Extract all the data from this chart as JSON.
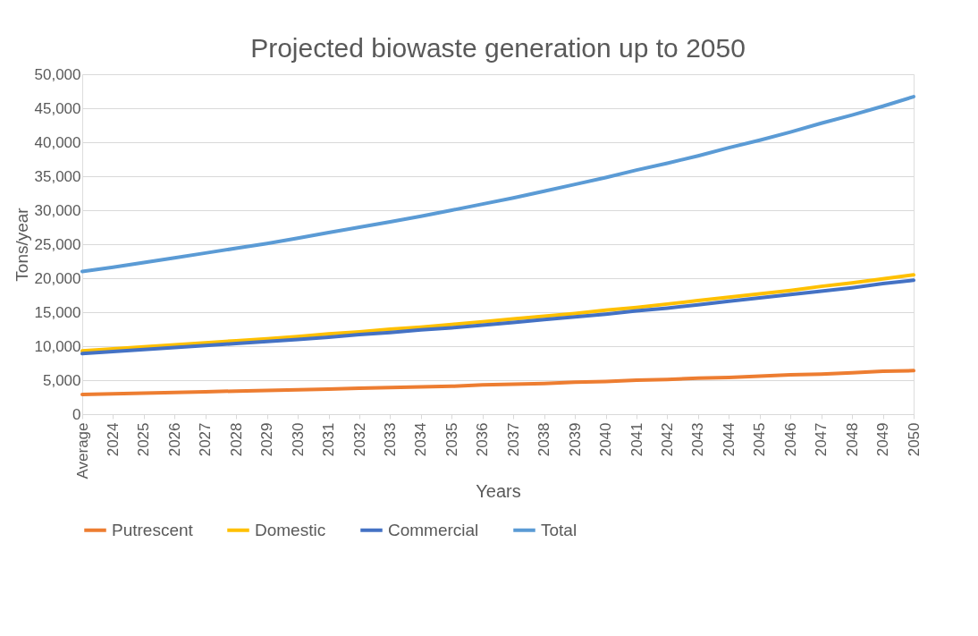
{
  "chart_data": {
    "type": "line",
    "title": "Projected biowaste generation up to 2050",
    "xlabel": "Years",
    "ylabel": "Tons/year",
    "categories": [
      "Average",
      "2024",
      "2025",
      "2026",
      "2027",
      "2028",
      "2029",
      "2030",
      "2031",
      "2032",
      "2033",
      "2034",
      "2035",
      "2036",
      "2037",
      "2038",
      "2039",
      "2040",
      "2041",
      "2042",
      "2043",
      "2044",
      "2045",
      "2046",
      "2047",
      "2048",
      "2049",
      "2050"
    ],
    "series": [
      {
        "name": "Putrescent",
        "color": "#ed7d31",
        "values": [
          2900,
          3000,
          3100,
          3200,
          3300,
          3400,
          3500,
          3600,
          3700,
          3800,
          3900,
          4000,
          4100,
          4300,
          4400,
          4500,
          4700,
          4800,
          5000,
          5100,
          5300,
          5400,
          5600,
          5800,
          5900,
          6100,
          6300,
          6400
        ]
      },
      {
        "name": "Domestic",
        "color": "#ffc000",
        "values": [
          9300,
          9600,
          9900,
          10200,
          10500,
          10800,
          11100,
          11400,
          11800,
          12100,
          12500,
          12800,
          13200,
          13600,
          14000,
          14400,
          14800,
          15300,
          15700,
          16200,
          16700,
          17200,
          17700,
          18200,
          18800,
          19300,
          19900,
          20500
        ]
      },
      {
        "name": "Commercial",
        "color": "#4472c4",
        "values": [
          8900,
          9200,
          9500,
          9800,
          10100,
          10400,
          10700,
          11000,
          11300,
          11700,
          12000,
          12400,
          12700,
          13100,
          13500,
          13900,
          14300,
          14700,
          15200,
          15600,
          16100,
          16600,
          17100,
          17600,
          18100,
          18600,
          19200,
          19700
        ]
      },
      {
        "name": "Total",
        "color": "#5b9bd5",
        "values": [
          21000,
          21600,
          22300,
          23000,
          23700,
          24400,
          25100,
          25900,
          26700,
          27500,
          28300,
          29100,
          30000,
          30900,
          31800,
          32800,
          33800,
          34800,
          35900,
          36900,
          38000,
          39200,
          40300,
          41500,
          42800,
          44000,
          45300,
          46700
        ]
      }
    ],
    "ylim": [
      0,
      50000
    ],
    "yticks": [
      0,
      {
        "value": 5000,
        "label": "5,000"
      },
      {
        "value": 10000,
        "label": "10,000"
      },
      {
        "value": 15000,
        "label": "15,000"
      },
      {
        "value": 20000,
        "label": "20,000"
      },
      {
        "value": 25000,
        "label": "25,000"
      },
      {
        "value": 30000,
        "label": "30,000"
      },
      {
        "value": 35000,
        "label": "35,000"
      },
      {
        "value": 40000,
        "label": "40,000"
      },
      {
        "value": 45000,
        "label": "45,000"
      },
      {
        "value": 50000,
        "label": "50,000"
      }
    ],
    "grid": "y",
    "legend": "bottom",
    "marker": "none",
    "line_style": "solid"
  }
}
